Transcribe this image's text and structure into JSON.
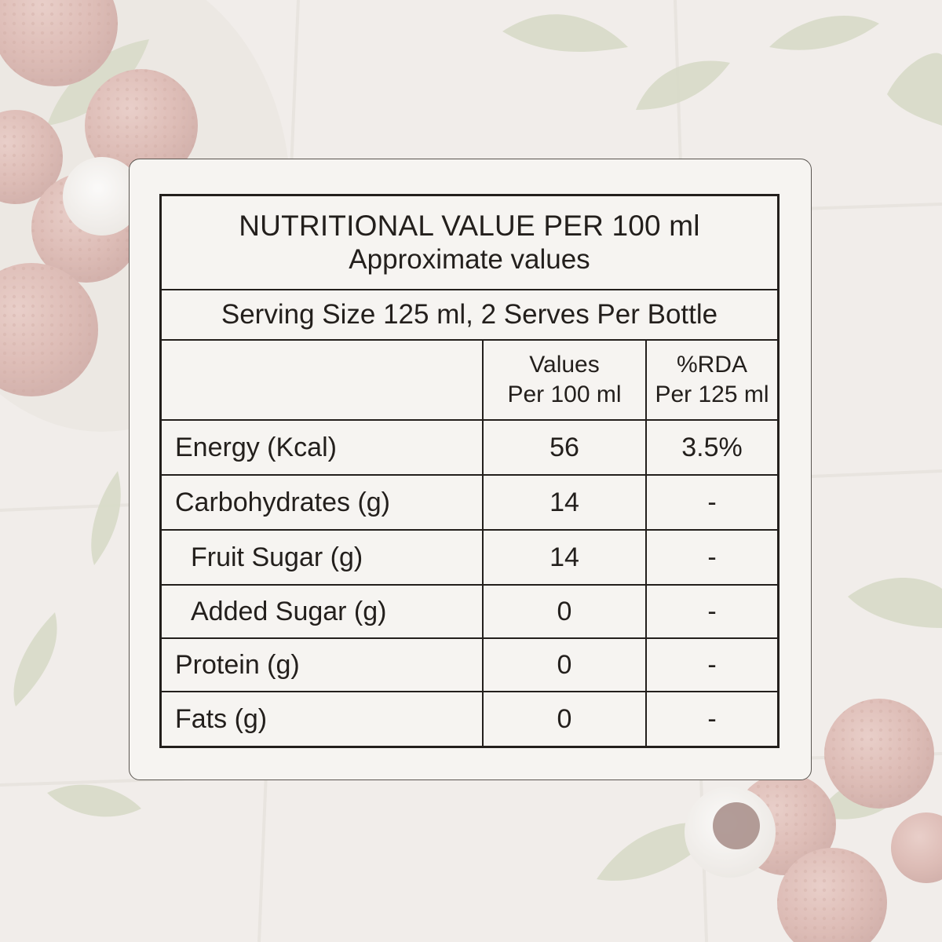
{
  "label": {
    "title": "NUTRITIONAL VALUE PER 100 ml",
    "subtitle": "Approximate values",
    "serving": "Serving Size 125 ml, 2 Serves Per Bottle",
    "headers": {
      "name": "",
      "values_line1": "Values",
      "values_line2": "Per 100 ml",
      "rda_line1": "%RDA",
      "rda_line2": "Per 125 ml"
    },
    "rows": [
      {
        "name": "Energy (Kcal)",
        "value": "56",
        "rda": "3.5%"
      },
      {
        "name": "Carbohydrates (g)",
        "value": "14",
        "rda": "-"
      },
      {
        "name": "Fruit Sugar (g)",
        "value": "14",
        "rda": "-"
      },
      {
        "name": "Added Sugar (g)",
        "value": "0",
        "rda": "-"
      },
      {
        "name": "Protein (g)",
        "value": "0",
        "rda": "-"
      },
      {
        "name": "Fats (g)",
        "value": "0",
        "rda": "-"
      }
    ]
  },
  "colors": {
    "ink": "#231f1c",
    "card": "#f6f4f1",
    "background": "#efeae6",
    "lychee": "#c98f86",
    "leaf": "#b9c2a4"
  }
}
